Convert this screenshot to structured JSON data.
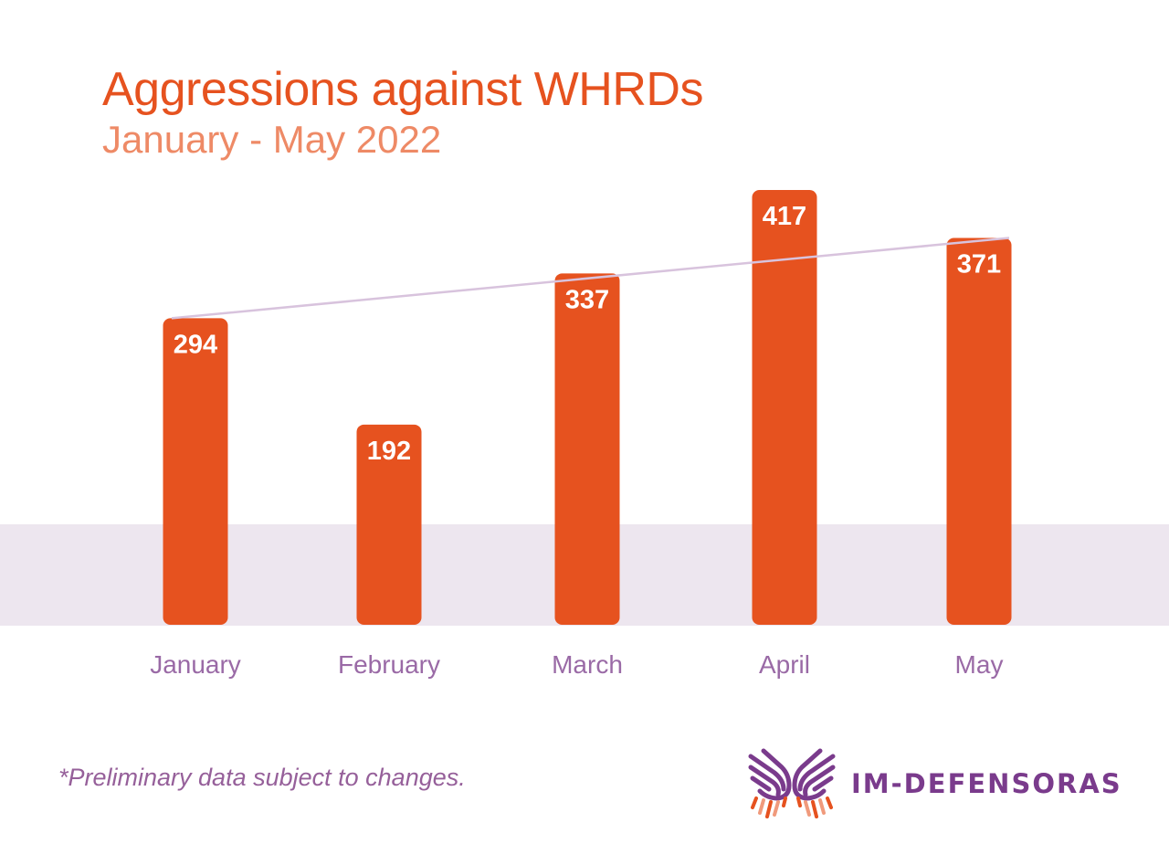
{
  "chart_data": {
    "type": "bar",
    "title": "Aggressions against WHRDs",
    "subtitle": "January - May 2022",
    "categories": [
      "January",
      "February",
      "March",
      "April",
      "May"
    ],
    "values": [
      294,
      192,
      337,
      417,
      371
    ],
    "data_labels": [
      "294",
      "192",
      "337",
      "417",
      "371"
    ],
    "xlabel": "",
    "ylabel": "",
    "ylim": [
      0,
      417
    ],
    "grid": false,
    "trendline": {
      "type": "linear",
      "from": "January",
      "to": "May"
    },
    "colors": {
      "bar": "#e6521f",
      "label": "#ffffff",
      "category": "#9a6aa6",
      "trend": "#d8c3dd",
      "band": "#ede6ef"
    }
  },
  "footnote": "*Preliminary data subject to changes.",
  "logo": {
    "text": "IM-DEFENSORAS",
    "icon": "hands-icon"
  }
}
